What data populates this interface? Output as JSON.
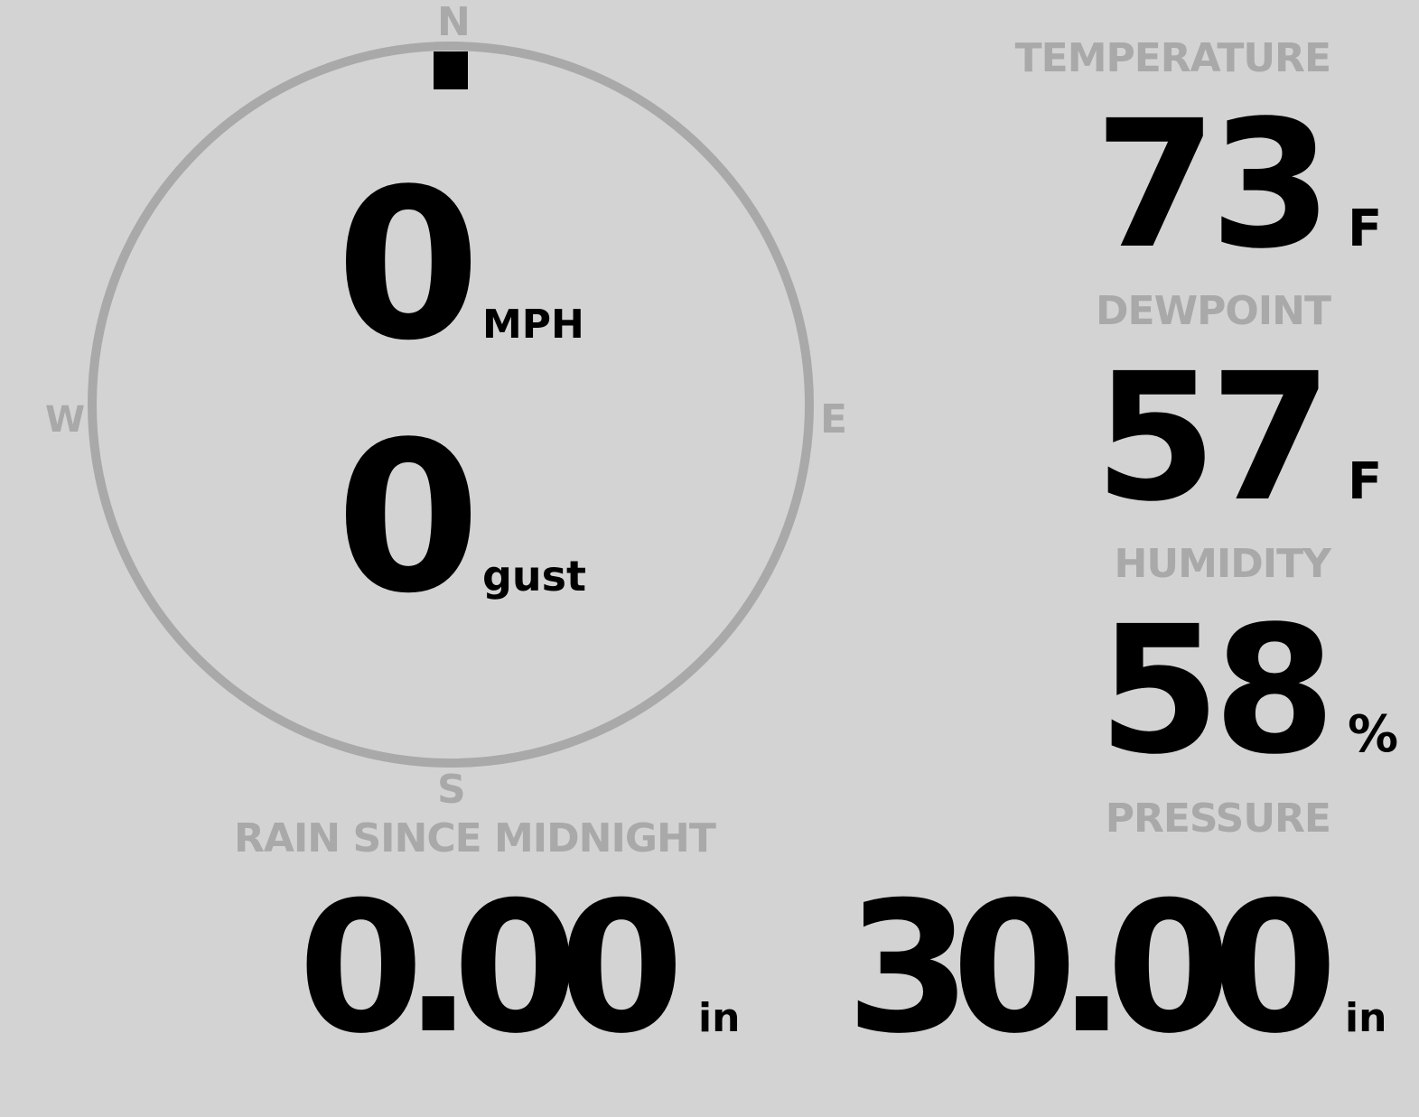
{
  "wind": {
    "speed": "0",
    "speed_unit": "MPH",
    "gust": "0",
    "gust_unit": "gust",
    "direction_deg": 0,
    "cardinals": {
      "n": "N",
      "e": "E",
      "s": "S",
      "w": "W"
    }
  },
  "temperature": {
    "label": "TEMPERATURE",
    "value": "73",
    "unit": "F"
  },
  "dewpoint": {
    "label": "DEWPOINT",
    "value": "57",
    "unit": "F"
  },
  "humidity": {
    "label": "HUMIDITY",
    "value": "58",
    "unit": "%"
  },
  "rain": {
    "label": "RAIN SINCE MIDNIGHT",
    "value": "0.00",
    "unit": "in"
  },
  "pressure": {
    "label": "PRESSURE",
    "value": "30.00",
    "unit": "in"
  },
  "colors": {
    "background": "#d3d3d3",
    "muted": "#a9a9a9",
    "value": "#000000"
  }
}
